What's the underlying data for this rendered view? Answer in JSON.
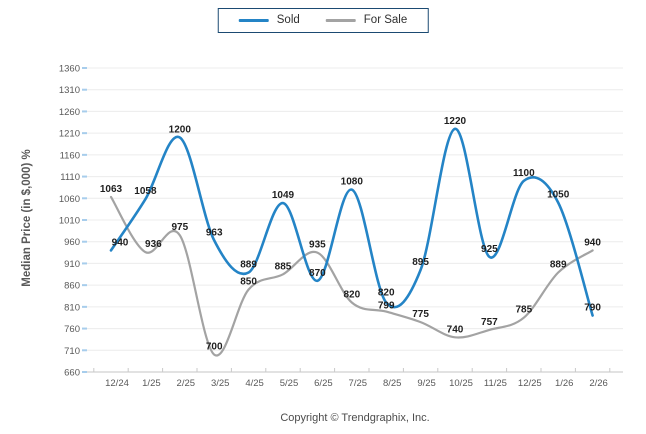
{
  "legend": {
    "border_color": "#1b4a72",
    "items": [
      {
        "label": "Sold",
        "color": "#2484c6"
      },
      {
        "label": "For Sale",
        "color": "#a3a3a3"
      }
    ]
  },
  "footer": {
    "copyright": "Copyright © Trendgraphix, Inc."
  },
  "colors": {
    "grid_line": "#ececec",
    "axis_line": "#c6c6c6",
    "y_tick_mark": "#a7cdec",
    "x_tick_mark": "#c9c9c9",
    "tick_label": "#595959",
    "data_label": "#1f1f1f"
  },
  "chart_data": {
    "type": "line",
    "title": "",
    "ylabel": "Median Price (in $,000) %",
    "xlabel": "",
    "ylim": [
      660,
      1360
    ],
    "ytick_step": 50,
    "yticks": [
      660,
      710,
      760,
      810,
      860,
      910,
      960,
      1010,
      1060,
      1110,
      1160,
      1210,
      1260,
      1310,
      1360
    ],
    "grid": true,
    "legend_position": "top-center",
    "categories": [
      "12/24",
      "1/25",
      "2/25",
      "3/25",
      "4/25",
      "5/25",
      "6/25",
      "7/25",
      "8/25",
      "9/25",
      "10/25",
      "11/25",
      "12/25",
      "1/26",
      "2/26"
    ],
    "series": [
      {
        "name": "Sold",
        "color": "#2484c6",
        "values": [
          940,
          1058,
          1200,
          963,
          889,
          1049,
          870,
          1080,
          820,
          895,
          1220,
          925,
          1100,
          1050,
          790
        ]
      },
      {
        "name": "For Sale",
        "color": "#a3a3a3",
        "values": [
          1063,
          936,
          975,
          700,
          850,
          885,
          935,
          820,
          799,
          775,
          740,
          757,
          785,
          889,
          940
        ]
      }
    ]
  }
}
